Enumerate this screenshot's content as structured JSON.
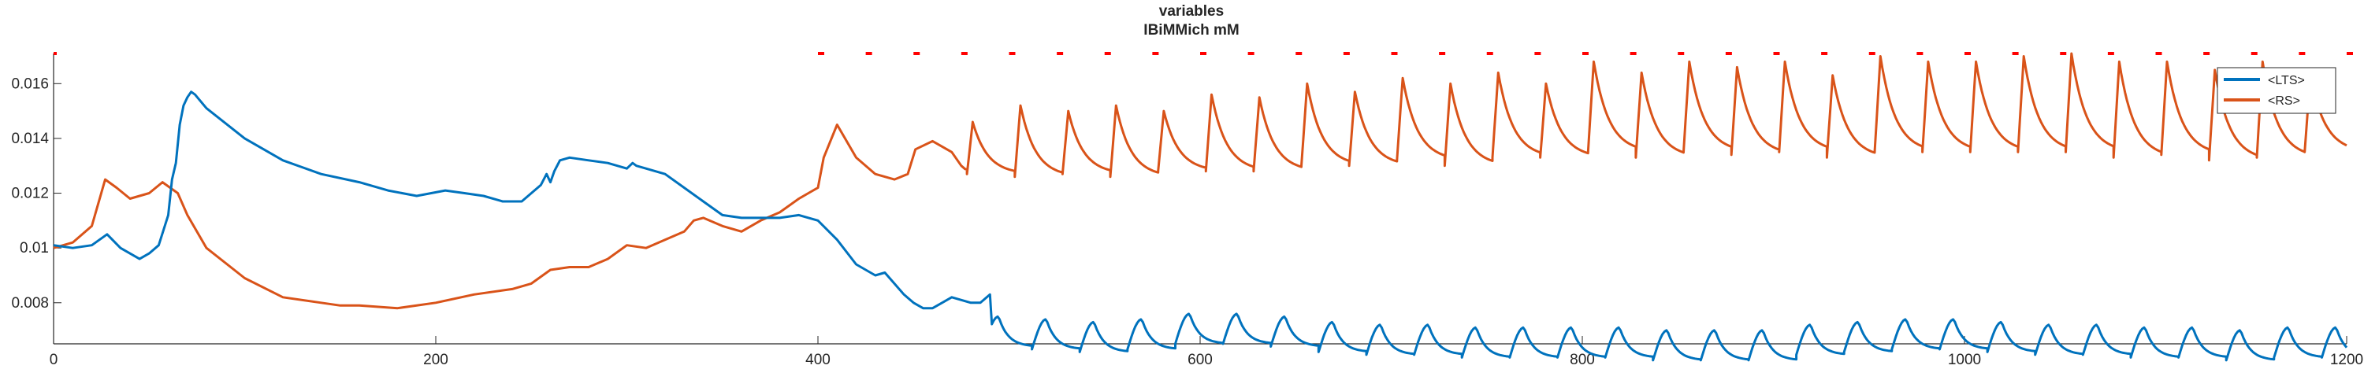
{
  "chart_data": {
    "type": "line",
    "title": "variables",
    "subtitle": "IBiMMich mM",
    "xlabel": "",
    "ylabel": "",
    "xlim": [
      0,
      1200
    ],
    "ylim": [
      0.0065,
      0.0171
    ],
    "x_ticks": [
      "0",
      "200",
      "400",
      "600",
      "800",
      "1000",
      "1200"
    ],
    "y_ticks": [
      "0.008",
      "0.01",
      "0.012",
      "0.014",
      "0.016"
    ],
    "legend_position": "top-right",
    "colors": {
      "LTS": "#0072BD",
      "RS": "#D95319",
      "markers": "#FF0000",
      "axis": "#262626"
    },
    "series": [
      {
        "name": "<LTS>",
        "color": "#0072BD",
        "x": [
          0,
          10,
          20,
          28,
          35,
          45,
          50,
          55,
          60,
          62,
          64,
          66,
          68,
          70,
          72,
          74,
          80,
          100,
          120,
          140,
          160,
          175,
          190,
          205,
          215,
          225,
          235,
          245,
          250,
          255,
          258,
          260,
          262,
          265,
          270,
          280,
          290,
          300,
          303,
          305,
          310,
          320,
          330,
          340,
          350,
          360,
          370,
          380,
          390,
          400,
          410,
          420,
          430,
          435,
          440,
          445,
          450,
          455,
          460,
          465,
          470,
          475,
          480,
          485,
          490
        ],
        "y": [
          0.0101,
          0.01,
          0.0101,
          0.0105,
          0.01,
          0.0096,
          0.0098,
          0.0101,
          0.0112,
          0.0125,
          0.0131,
          0.0145,
          0.0152,
          0.0155,
          0.0157,
          0.0156,
          0.0151,
          0.014,
          0.0132,
          0.0127,
          0.0124,
          0.0121,
          0.0119,
          0.0121,
          0.012,
          0.0119,
          0.0117,
          0.0117,
          0.012,
          0.0123,
          0.0127,
          0.0124,
          0.0128,
          0.0132,
          0.0133,
          0.0132,
          0.0131,
          0.0129,
          0.0131,
          0.013,
          0.0129,
          0.0127,
          0.0122,
          0.0117,
          0.0112,
          0.0111,
          0.0111,
          0.0111,
          0.0112,
          0.011,
          0.0103,
          0.0094,
          0.009,
          0.0091,
          0.0087,
          0.0083,
          0.008,
          0.0078,
          0.0078,
          0.008,
          0.0082,
          0.0081,
          0.008,
          0.008,
          0.0083
        ]
      },
      {
        "name": "<RS>",
        "color": "#D95319",
        "x": [
          0,
          10,
          20,
          27,
          33,
          40,
          50,
          57,
          65,
          70,
          80,
          100,
          120,
          140,
          150,
          160,
          180,
          200,
          220,
          240,
          250,
          260,
          270,
          280,
          290,
          300,
          310,
          320,
          330,
          335,
          340,
          350,
          360,
          370,
          380,
          390,
          395,
          400,
          403,
          410,
          420,
          430,
          440,
          447,
          451,
          460,
          470,
          475
        ],
        "y": [
          0.01,
          0.0102,
          0.0108,
          0.0125,
          0.0122,
          0.0118,
          0.012,
          0.0124,
          0.012,
          0.0112,
          0.01,
          0.0089,
          0.0082,
          0.008,
          0.0079,
          0.0079,
          0.0078,
          0.008,
          0.0083,
          0.0085,
          0.0087,
          0.0092,
          0.0093,
          0.0093,
          0.0096,
          0.0101,
          0.01,
          0.0103,
          0.0106,
          0.011,
          0.0111,
          0.0108,
          0.0106,
          0.011,
          0.0113,
          0.0118,
          0.012,
          0.0122,
          0.0133,
          0.0145,
          0.0133,
          0.0127,
          0.0125,
          0.0127,
          0.0136,
          0.0139,
          0.0135,
          0.013
        ]
      }
    ],
    "periodic": {
      "description_free_values_only": true,
      "start": 400,
      "period": 25,
      "end": 1200,
      "LTS_peaks": [
        0.0084,
        0.0078,
        0.0076,
        0.0075,
        0.0074,
        0.0073,
        0.0074,
        0.0076,
        0.0076,
        0.0075,
        0.0073,
        0.0072,
        0.0072,
        0.0071,
        0.0071,
        0.0071,
        0.0071,
        0.007,
        0.007,
        0.007,
        0.0072,
        0.0073,
        0.0074,
        0.0074,
        0.0073,
        0.0072,
        0.0072,
        0.0071,
        0.0071,
        0.007,
        0.0071,
        0.0071
      ],
      "RS_peaks": [
        0.0145,
        0.014,
        0.0154,
        0.0146,
        0.0152,
        0.015,
        0.0152,
        0.015,
        0.0156,
        0.0155,
        0.016,
        0.0157,
        0.0162,
        0.016,
        0.0164,
        0.016,
        0.0168,
        0.0164,
        0.0168,
        0.0166,
        0.0168,
        0.0163,
        0.017,
        0.0168,
        0.0168,
        0.017,
        0.0171,
        0.0168,
        0.0168,
        0.0165,
        0.0168,
        0.0163
      ],
      "RS_troughs": [
        0.0128,
        0.0126,
        0.0127,
        0.0127,
        0.0126,
        0.0127,
        0.0126,
        0.0128,
        0.0128,
        0.0128,
        0.013,
        0.013,
        0.0132,
        0.013,
        0.0133,
        0.0133,
        0.0135,
        0.0133,
        0.0135,
        0.0134,
        0.0135,
        0.0133,
        0.0135,
        0.0135,
        0.0135,
        0.0135,
        0.0135,
        0.0133,
        0.0134,
        0.0132,
        0.0133,
        0.0135
      ]
    }
  }
}
